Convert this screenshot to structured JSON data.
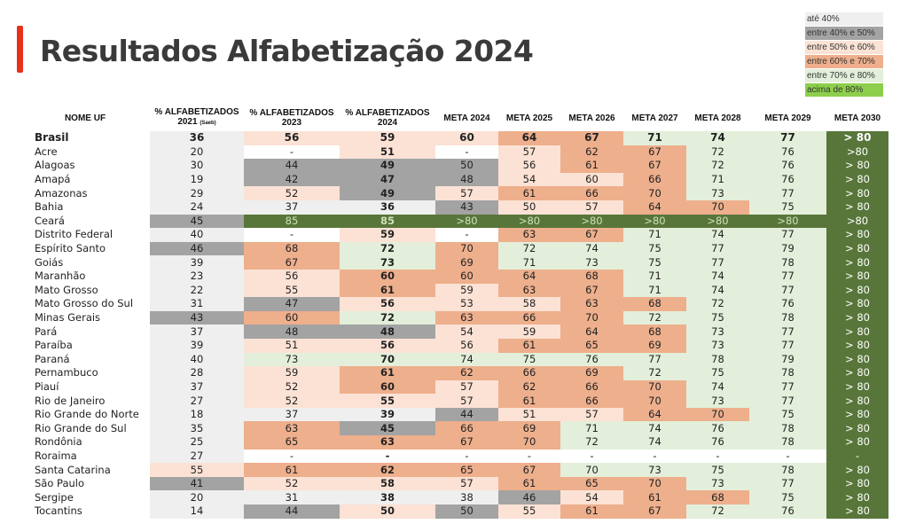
{
  "title": "Resultados Alfabetização 2024",
  "colors": {
    "accent": "#e8301b",
    "lt40": "#efefef",
    "b40_50": "#a3a3a3",
    "b50_60": "#fbe2d5",
    "b60_70": "#eeaf8c",
    "b70_80": "#e3efda",
    "gt80": "#8dcf4c",
    "dark_green": "#58763a",
    "white": "#ffffff"
  },
  "legend": [
    {
      "label": "até 40%",
      "color": "lt40"
    },
    {
      "label": "entre 40% e 50%",
      "color": "b40_50"
    },
    {
      "label": "entre 50% e 60%",
      "color": "b50_60"
    },
    {
      "label": "entre 60% e 70%",
      "color": "b60_70"
    },
    {
      "label": "entre 70% e 80%",
      "color": "b70_80"
    },
    {
      "label": "acima de 80%",
      "color": "gt80"
    }
  ],
  "columns": [
    {
      "label": "NOME UF"
    },
    {
      "label": "% ALFABETIZADOS 2021",
      "sub": "(Saeb)"
    },
    {
      "label": "% ALFABETIZADOS 2023"
    },
    {
      "label": "% ALFABETIZADOS 2024"
    },
    {
      "label": "META 2024"
    },
    {
      "label": "META 2025"
    },
    {
      "label": "META 2026"
    },
    {
      "label": "META 2027"
    },
    {
      "label": "META 2028"
    },
    {
      "label": "META 2029"
    },
    {
      "label": "META 2030"
    }
  ],
  "rows": [
    {
      "uf": "Brasil",
      "values": [
        "36",
        "56",
        "59",
        "60",
        "64",
        "67",
        "71",
        "74",
        "77",
        "> 80"
      ],
      "colors": [
        "lt40",
        "b50_60",
        "b50_60",
        "b50_60",
        "b60_70",
        "b60_70",
        "b70_80",
        "b70_80",
        "b70_80",
        "dark_green"
      ]
    },
    {
      "uf": "Acre",
      "values": [
        "20",
        "-",
        "51",
        "-",
        "57",
        "62",
        "67",
        "72",
        "76",
        ">80"
      ],
      "colors": [
        "lt40",
        "white",
        "b50_60",
        "white",
        "b50_60",
        "b60_70",
        "b60_70",
        "b70_80",
        "b70_80",
        "dark_green"
      ]
    },
    {
      "uf": "Alagoas",
      "values": [
        "30",
        "44",
        "49",
        "50",
        "56",
        "61",
        "67",
        "72",
        "76",
        "> 80"
      ],
      "colors": [
        "lt40",
        "b40_50",
        "b40_50",
        "b40_50",
        "b50_60",
        "b60_70",
        "b60_70",
        "b70_80",
        "b70_80",
        "dark_green"
      ]
    },
    {
      "uf": "Amapá",
      "values": [
        "19",
        "42",
        "47",
        "48",
        "54",
        "60",
        "66",
        "71",
        "76",
        "> 80"
      ],
      "colors": [
        "lt40",
        "b40_50",
        "b40_50",
        "b40_50",
        "b50_60",
        "b50_60",
        "b60_70",
        "b70_80",
        "b70_80",
        "dark_green"
      ]
    },
    {
      "uf": "Amazonas",
      "values": [
        "29",
        "52",
        "49",
        "57",
        "61",
        "66",
        "70",
        "73",
        "77",
        "> 80"
      ],
      "colors": [
        "lt40",
        "b50_60",
        "b40_50",
        "b50_60",
        "b60_70",
        "b60_70",
        "b60_70",
        "b70_80",
        "b70_80",
        "dark_green"
      ]
    },
    {
      "uf": "Bahia",
      "values": [
        "24",
        "37",
        "36",
        "43",
        "50",
        "57",
        "64",
        "70",
        "75",
        "> 80"
      ],
      "colors": [
        "lt40",
        "lt40",
        "lt40",
        "b40_50",
        "b50_60",
        "b50_60",
        "b60_70",
        "b60_70",
        "b70_80",
        "dark_green"
      ]
    },
    {
      "uf": "Ceará",
      "values": [
        "45",
        "85",
        "85",
        ">80",
        ">80",
        ">80",
        ">80",
        ">80",
        ">80",
        ">80"
      ],
      "colors": [
        "b40_50",
        "dark_green",
        "dark_green",
        "dark_green",
        "dark_green",
        "dark_green",
        "dark_green",
        "dark_green",
        "dark_green",
        "dark_green"
      ]
    },
    {
      "uf": "Distrito Federal",
      "values": [
        "40",
        "-",
        "59",
        "-",
        "63",
        "67",
        "71",
        "74",
        "77",
        "> 80"
      ],
      "colors": [
        "lt40",
        "white",
        "b50_60",
        "white",
        "b60_70",
        "b60_70",
        "b70_80",
        "b70_80",
        "b70_80",
        "dark_green"
      ]
    },
    {
      "uf": "Espírito Santo",
      "values": [
        "46",
        "68",
        "72",
        "70",
        "72",
        "74",
        "75",
        "77",
        "79",
        "> 80"
      ],
      "colors": [
        "b40_50",
        "b60_70",
        "b70_80",
        "b60_70",
        "b70_80",
        "b70_80",
        "b70_80",
        "b70_80",
        "b70_80",
        "dark_green"
      ]
    },
    {
      "uf": "Goiás",
      "values": [
        "39",
        "67",
        "73",
        "69",
        "71",
        "73",
        "75",
        "77",
        "78",
        "> 80"
      ],
      "colors": [
        "lt40",
        "b60_70",
        "b70_80",
        "b60_70",
        "b70_80",
        "b70_80",
        "b70_80",
        "b70_80",
        "b70_80",
        "dark_green"
      ]
    },
    {
      "uf": "Maranhão",
      "values": [
        "23",
        "56",
        "60",
        "60",
        "64",
        "68",
        "71",
        "74",
        "77",
        "> 80"
      ],
      "colors": [
        "lt40",
        "b50_60",
        "b60_70",
        "b60_70",
        "b60_70",
        "b60_70",
        "b70_80",
        "b70_80",
        "b70_80",
        "dark_green"
      ]
    },
    {
      "uf": "Mato Grosso",
      "values": [
        "22",
        "55",
        "61",
        "59",
        "63",
        "67",
        "71",
        "74",
        "77",
        "> 80"
      ],
      "colors": [
        "lt40",
        "b50_60",
        "b60_70",
        "b50_60",
        "b60_70",
        "b60_70",
        "b70_80",
        "b70_80",
        "b70_80",
        "dark_green"
      ]
    },
    {
      "uf": "Mato Grosso do Sul",
      "values": [
        "31",
        "47",
        "56",
        "53",
        "58",
        "63",
        "68",
        "72",
        "76",
        "> 80"
      ],
      "colors": [
        "lt40",
        "b40_50",
        "b50_60",
        "b50_60",
        "b50_60",
        "b60_70",
        "b60_70",
        "b70_80",
        "b70_80",
        "dark_green"
      ]
    },
    {
      "uf": "Minas Gerais",
      "values": [
        "43",
        "60",
        "72",
        "63",
        "66",
        "70",
        "72",
        "75",
        "78",
        "> 80"
      ],
      "colors": [
        "b40_50",
        "b60_70",
        "b70_80",
        "b60_70",
        "b60_70",
        "b60_70",
        "b70_80",
        "b70_80",
        "b70_80",
        "dark_green"
      ]
    },
    {
      "uf": "Pará",
      "values": [
        "37",
        "48",
        "48",
        "54",
        "59",
        "64",
        "68",
        "73",
        "77",
        "> 80"
      ],
      "colors": [
        "lt40",
        "b40_50",
        "b40_50",
        "b50_60",
        "b50_60",
        "b60_70",
        "b60_70",
        "b70_80",
        "b70_80",
        "dark_green"
      ]
    },
    {
      "uf": "Paraíba",
      "values": [
        "39",
        "51",
        "56",
        "56",
        "61",
        "65",
        "69",
        "73",
        "77",
        "> 80"
      ],
      "colors": [
        "lt40",
        "b50_60",
        "b50_60",
        "b50_60",
        "b60_70",
        "b60_70",
        "b60_70",
        "b70_80",
        "b70_80",
        "dark_green"
      ]
    },
    {
      "uf": "Paraná",
      "values": [
        "40",
        "73",
        "70",
        "74",
        "75",
        "76",
        "77",
        "78",
        "79",
        "> 80"
      ],
      "colors": [
        "lt40",
        "b70_80",
        "b70_80",
        "b70_80",
        "b70_80",
        "b70_80",
        "b70_80",
        "b70_80",
        "b70_80",
        "dark_green"
      ]
    },
    {
      "uf": "Pernambuco",
      "values": [
        "28",
        "59",
        "61",
        "62",
        "66",
        "69",
        "72",
        "75",
        "78",
        "> 80"
      ],
      "colors": [
        "lt40",
        "b50_60",
        "b60_70",
        "b60_70",
        "b60_70",
        "b60_70",
        "b70_80",
        "b70_80",
        "b70_80",
        "dark_green"
      ]
    },
    {
      "uf": "Piauí",
      "values": [
        "37",
        "52",
        "60",
        "57",
        "62",
        "66",
        "70",
        "74",
        "77",
        "> 80"
      ],
      "colors": [
        "lt40",
        "b50_60",
        "b60_70",
        "b50_60",
        "b60_70",
        "b60_70",
        "b60_70",
        "b70_80",
        "b70_80",
        "dark_green"
      ]
    },
    {
      "uf": "Rio de Janeiro",
      "values": [
        "27",
        "52",
        "55",
        "57",
        "61",
        "66",
        "70",
        "73",
        "77",
        "> 80"
      ],
      "colors": [
        "lt40",
        "b50_60",
        "b50_60",
        "b50_60",
        "b60_70",
        "b60_70",
        "b60_70",
        "b70_80",
        "b70_80",
        "dark_green"
      ]
    },
    {
      "uf": "Rio Grande do Norte",
      "values": [
        "18",
        "37",
        "39",
        "44",
        "51",
        "57",
        "64",
        "70",
        "75",
        "> 80"
      ],
      "colors": [
        "lt40",
        "lt40",
        "lt40",
        "b40_50",
        "b50_60",
        "b50_60",
        "b60_70",
        "b60_70",
        "b70_80",
        "dark_green"
      ]
    },
    {
      "uf": "Rio Grande do Sul",
      "values": [
        "35",
        "63",
        "45",
        "66",
        "69",
        "71",
        "74",
        "76",
        "78",
        "> 80"
      ],
      "colors": [
        "lt40",
        "b60_70",
        "b40_50",
        "b60_70",
        "b60_70",
        "b70_80",
        "b70_80",
        "b70_80",
        "b70_80",
        "dark_green"
      ]
    },
    {
      "uf": "Rondônia",
      "values": [
        "25",
        "65",
        "63",
        "67",
        "70",
        "72",
        "74",
        "76",
        "78",
        "> 80"
      ],
      "colors": [
        "lt40",
        "b60_70",
        "b60_70",
        "b60_70",
        "b60_70",
        "b70_80",
        "b70_80",
        "b70_80",
        "b70_80",
        "dark_green"
      ]
    },
    {
      "uf": "Roraima",
      "values": [
        "27",
        "-",
        "-",
        "-",
        "-",
        "-",
        "-",
        "-",
        "-",
        "-"
      ],
      "colors": [
        "lt40",
        "white",
        "white",
        "white",
        "white",
        "white",
        "white",
        "white",
        "white",
        "dark_green"
      ]
    },
    {
      "uf": "Santa Catarina",
      "values": [
        "55",
        "61",
        "62",
        "65",
        "67",
        "70",
        "73",
        "75",
        "78",
        "> 80"
      ],
      "colors": [
        "b50_60",
        "b60_70",
        "b60_70",
        "b60_70",
        "b60_70",
        "b70_80",
        "b70_80",
        "b70_80",
        "b70_80",
        "dark_green"
      ]
    },
    {
      "uf": "São Paulo",
      "values": [
        "41",
        "52",
        "58",
        "57",
        "61",
        "65",
        "70",
        "73",
        "77",
        "> 80"
      ],
      "colors": [
        "b40_50",
        "b50_60",
        "b50_60",
        "b50_60",
        "b60_70",
        "b60_70",
        "b60_70",
        "b70_80",
        "b70_80",
        "dark_green"
      ]
    },
    {
      "uf": "Sergipe",
      "values": [
        "20",
        "31",
        "38",
        "38",
        "46",
        "54",
        "61",
        "68",
        "75",
        "> 80"
      ],
      "colors": [
        "lt40",
        "lt40",
        "lt40",
        "lt40",
        "b40_50",
        "b50_60",
        "b60_70",
        "b60_70",
        "b70_80",
        "dark_green"
      ]
    },
    {
      "uf": "Tocantins",
      "values": [
        "14",
        "44",
        "50",
        "50",
        "55",
        "61",
        "67",
        "72",
        "76",
        "> 80"
      ],
      "colors": [
        "lt40",
        "b40_50",
        "b50_60",
        "b40_50",
        "b50_60",
        "b60_70",
        "b60_70",
        "b70_80",
        "b70_80",
        "dark_green"
      ]
    }
  ]
}
